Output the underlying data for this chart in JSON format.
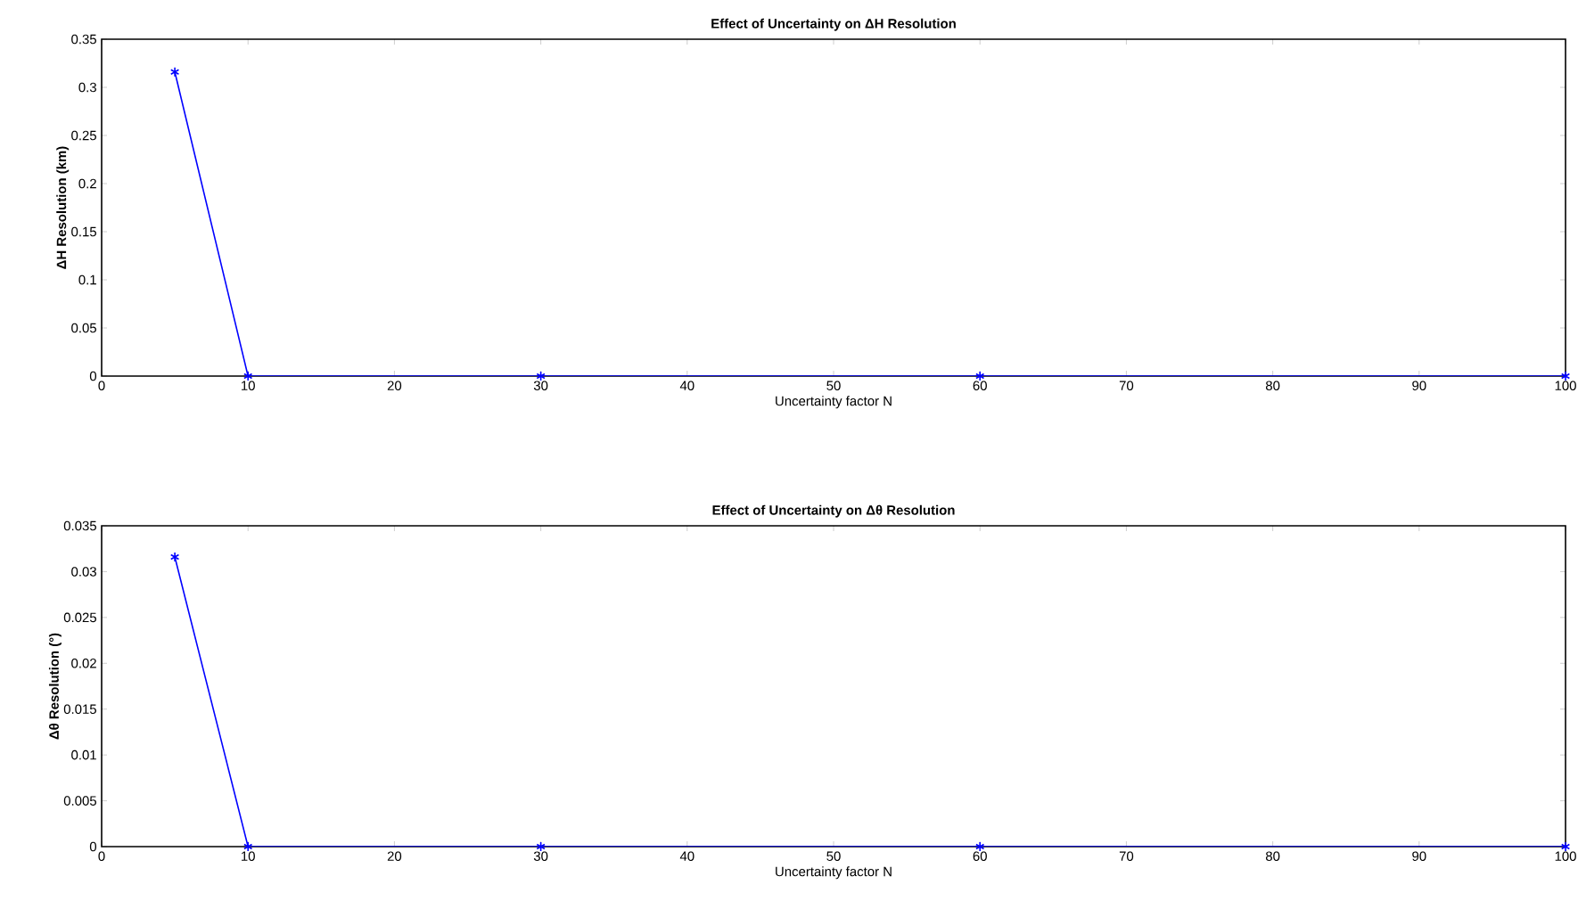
{
  "chart_data": [
    {
      "type": "line",
      "title": "Effect of Uncertainty on ΔH Resolution",
      "xlabel": "Uncertainty factor N",
      "ylabel": "ΔH Resolution (km)",
      "x": [
        5,
        10,
        30,
        60,
        100
      ],
      "series": [
        {
          "color": "#0000ff",
          "values": [
            0.316,
            0,
            0,
            0,
            0
          ]
        }
      ],
      "xlim": [
        0,
        100
      ],
      "xticks": [
        0,
        10,
        20,
        30,
        40,
        50,
        60,
        70,
        80,
        90,
        100
      ],
      "ylim": [
        0,
        0.35
      ],
      "yticks": [
        0,
        0.05,
        0.1,
        0.15,
        0.2,
        0.25,
        0.3,
        0.35
      ],
      "marker": "cross",
      "line_style": "solid",
      "grid": false
    },
    {
      "type": "line",
      "title": "Effect of Uncertainty on Δθ Resolution",
      "xlabel": "Uncertainty factor N",
      "ylabel": "Δθ Resolution (°)",
      "x": [
        5,
        10,
        30,
        60,
        100
      ],
      "series": [
        {
          "color": "#0000ff",
          "values": [
            0.0316,
            0,
            0,
            0,
            0
          ]
        }
      ],
      "xlim": [
        0,
        100
      ],
      "xticks": [
        0,
        10,
        20,
        30,
        40,
        50,
        60,
        70,
        80,
        90,
        100
      ],
      "ylim": [
        0,
        0.035
      ],
      "yticks": [
        0,
        0.005,
        0.01,
        0.015,
        0.02,
        0.025,
        0.03,
        0.035
      ],
      "marker": "cross",
      "line_style": "solid",
      "grid": false
    }
  ]
}
